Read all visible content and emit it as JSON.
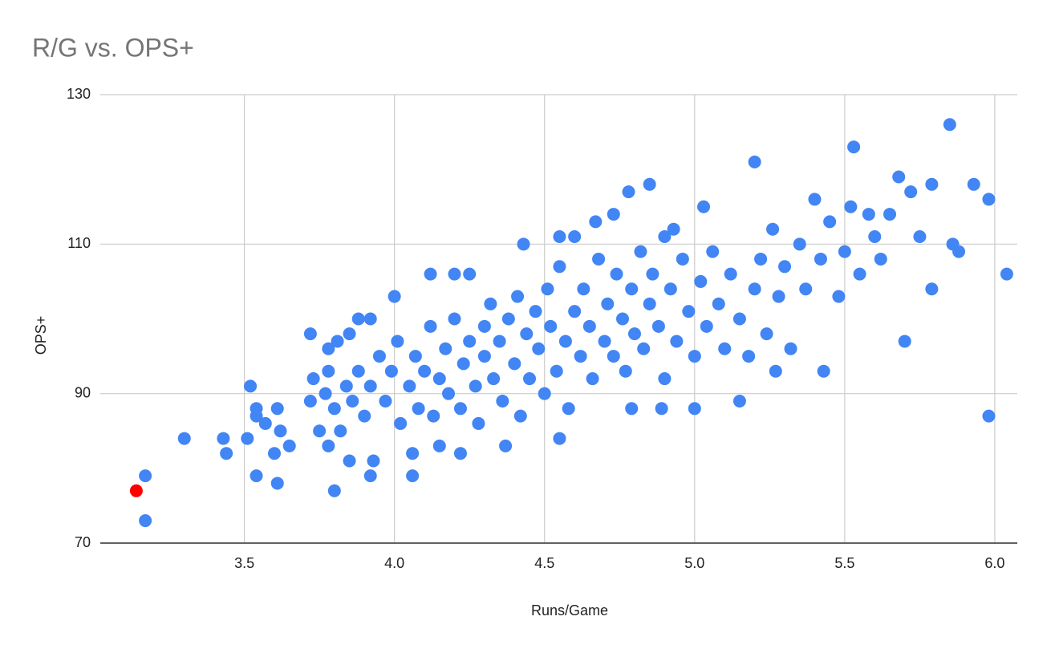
{
  "chart_data": {
    "type": "scatter",
    "title": "R/G vs. OPS+",
    "x_label": "Runs/Game",
    "y_label": "OPS+",
    "xlim": [
      3.02,
      6.075
    ],
    "ylim": [
      70,
      130
    ],
    "xticks": [
      3.5,
      {
        "value": 4,
        "label": "4.0"
      },
      4.5,
      {
        "value": 5,
        "label": "5.0"
      },
      5.5,
      {
        "value": 6,
        "label": "6.0"
      }
    ],
    "yticks": [
      70,
      90,
      110,
      130
    ],
    "grid": true,
    "series": [
      {
        "color": "#4285f4",
        "x": [
          3.17,
          3.17,
          3.3,
          3.43,
          3.44,
          3.51,
          3.52,
          3.54,
          3.54,
          3.54,
          3.57,
          3.61,
          3.6,
          3.61,
          3.62,
          3.65,
          3.72,
          3.73,
          3.8,
          3.78,
          3.81,
          3.85,
          3.88,
          3.92,
          3.92,
          4.0,
          4.06,
          4.06,
          4.12,
          4.2,
          4.25,
          4.43,
          4.55,
          4.6,
          4.67,
          4.73,
          4.78,
          4.85,
          4.93,
          5.03,
          5.2,
          5.53,
          5.85,
          5.68,
          5.79,
          5.93,
          5.98,
          6.04,
          5.98,
          5.79,
          5.7,
          5.43,
          5.27,
          5.15,
          5.0,
          4.89,
          4.79,
          4.55,
          4.37,
          4.22,
          4.15,
          3.78,
          3.85,
          3.93,
          3.72,
          3.75,
          3.77,
          3.78,
          3.8,
          3.82,
          3.84,
          3.86,
          3.88,
          3.9,
          3.92,
          3.95,
          3.97,
          3.99,
          4.01,
          4.02,
          4.05,
          4.07,
          4.08,
          4.1,
          4.12,
          4.13,
          4.15,
          4.17,
          4.18,
          4.2,
          4.22,
          4.23,
          4.25,
          4.27,
          4.28,
          4.3,
          4.3,
          4.32,
          4.33,
          4.35,
          4.36,
          4.38,
          4.4,
          4.41,
          4.42,
          4.44,
          4.45,
          4.47,
          4.48,
          4.5,
          4.51,
          4.52,
          4.54,
          4.55,
          4.57,
          4.58,
          4.6,
          4.62,
          4.63,
          4.65,
          4.66,
          4.68,
          4.7,
          4.71,
          4.73,
          4.74,
          4.76,
          4.77,
          4.79,
          4.8,
          4.82,
          4.83,
          4.85,
          4.86,
          4.88,
          4.9,
          4.9,
          4.92,
          4.94,
          4.96,
          4.98,
          5.0,
          5.02,
          5.04,
          5.06,
          5.08,
          5.1,
          5.12,
          5.15,
          5.18,
          5.2,
          5.22,
          5.24,
          5.26,
          5.28,
          5.3,
          5.32,
          5.35,
          5.37,
          5.4,
          5.42,
          5.45,
          5.48,
          5.5,
          5.52,
          5.55,
          5.58,
          5.6,
          5.62,
          5.65,
          5.72,
          5.75,
          5.86,
          5.88
        ],
        "y": [
          79,
          73,
          84,
          84,
          82,
          84,
          91,
          88,
          87,
          79,
          86,
          88,
          82,
          78,
          85,
          83,
          98,
          92,
          77,
          96,
          97,
          98,
          100,
          100,
          79,
          103,
          79,
          82,
          106,
          106,
          106,
          110,
          111,
          111,
          113,
          114,
          117,
          118,
          112,
          115,
          121,
          123,
          126,
          119,
          118,
          118,
          116,
          106,
          87,
          104,
          97,
          93,
          93,
          89,
          88,
          88,
          88,
          84,
          83,
          82,
          83,
          83,
          81,
          81,
          89,
          85,
          90,
          93,
          88,
          85,
          91,
          89,
          93,
          87,
          91,
          95,
          89,
          93,
          97,
          86,
          91,
          95,
          88,
          93,
          99,
          87,
          92,
          96,
          90,
          100,
          88,
          94,
          97,
          91,
          86,
          99,
          95,
          102,
          92,
          97,
          89,
          100,
          94,
          103,
          87,
          98,
          92,
          101,
          96,
          90,
          104,
          99,
          93,
          107,
          97,
          88,
          101,
          95,
          104,
          99,
          92,
          108,
          97,
          102,
          95,
          106,
          100,
          93,
          104,
          98,
          109,
          96,
          102,
          106,
          99,
          92,
          111,
          104,
          97,
          108,
          101,
          95,
          105,
          99,
          109,
          102,
          96,
          106,
          100,
          95,
          104,
          108,
          98,
          112,
          103,
          107,
          96,
          110,
          104,
          116,
          108,
          113,
          103,
          109,
          115,
          106,
          114,
          111,
          108,
          114,
          117,
          111,
          110,
          109
        ]
      },
      {
        "color": "#ff0000",
        "x": [
          3.14
        ],
        "y": [
          77
        ]
      }
    ]
  }
}
